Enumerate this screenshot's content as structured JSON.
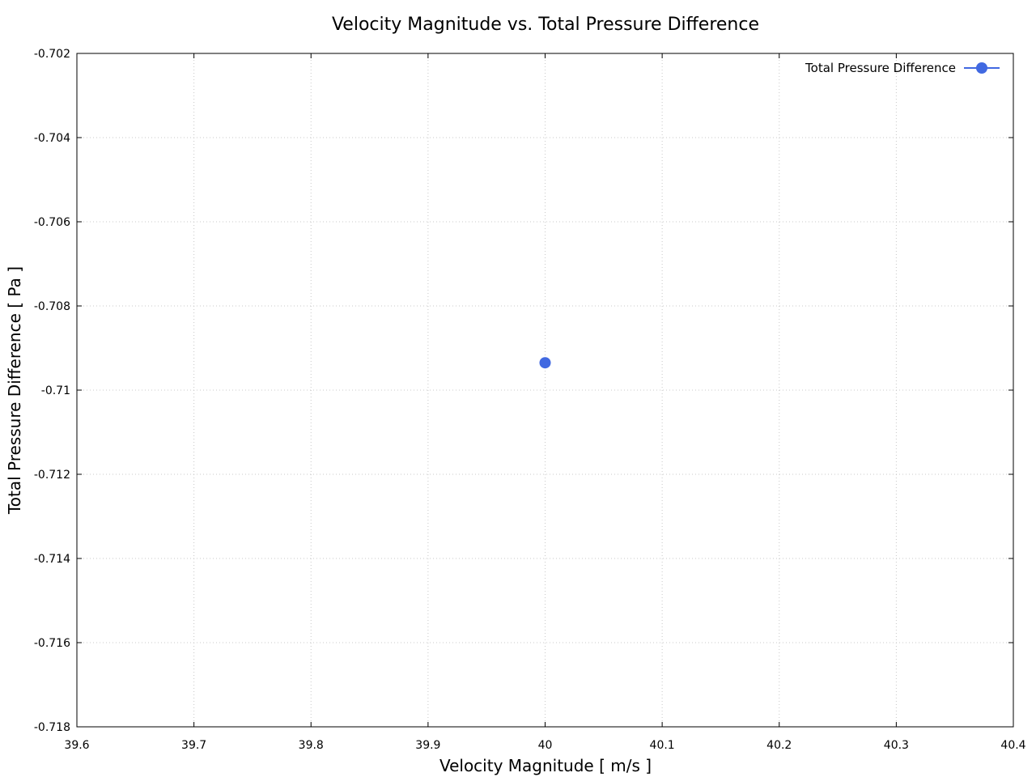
{
  "chart_data": {
    "type": "scatter",
    "title": "Velocity Magnitude vs. Total Pressure Difference",
    "xlabel": "Velocity Magnitude [ m/s ]",
    "ylabel": "Total Pressure Difference [ Pa ]",
    "xlim": [
      39.6,
      40.4
    ],
    "ylim": [
      -0.718,
      -0.702
    ],
    "x_ticks": [
      "39.6",
      "39.7",
      "39.8",
      "39.9",
      "40",
      "40.1",
      "40.2",
      "40.3",
      "40.4"
    ],
    "y_ticks": [
      "-0.702",
      "-0.704",
      "-0.706",
      "-0.708",
      "-0.71",
      "-0.712",
      "-0.714",
      "-0.716",
      "-0.718"
    ],
    "grid": true,
    "legend_position": "top-right",
    "series": [
      {
        "name": "Total Pressure Difference",
        "color": "#4169e1",
        "marker": "circle",
        "x": [
          40.0
        ],
        "y": [
          -0.70935
        ]
      }
    ]
  }
}
